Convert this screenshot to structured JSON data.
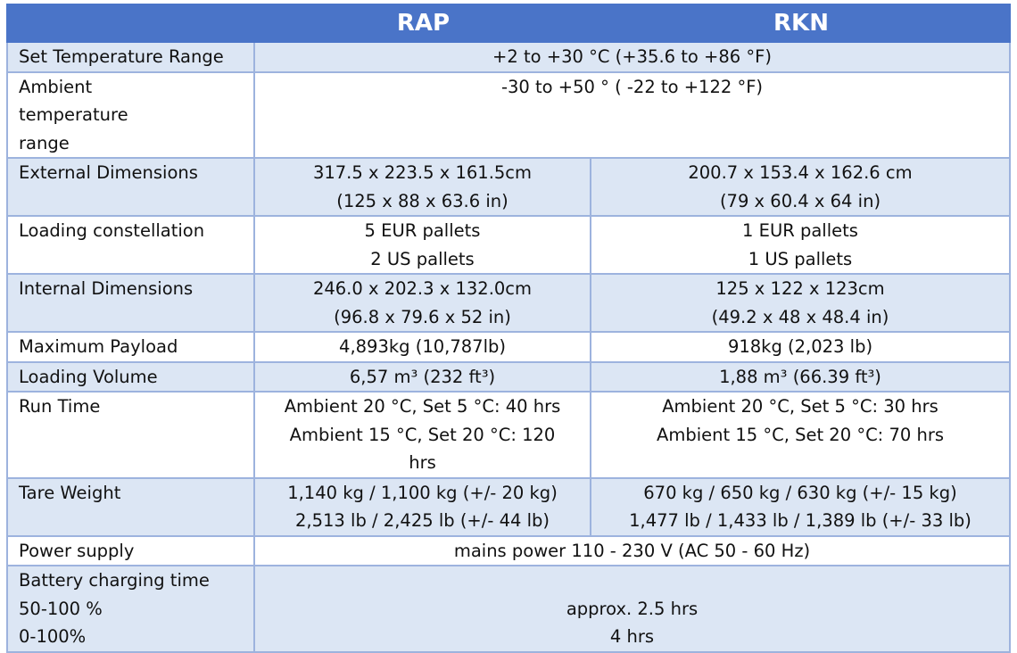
{
  "header": {
    "col1": "",
    "col2": "RAP",
    "col3": "RKN"
  },
  "rows": {
    "set_temp": {
      "label": "Set Temperature Range",
      "value": "+2 to +30 °C (+35.6 to +86 °F)"
    },
    "ambient": {
      "label_line1_a": "Ambient",
      "label_line1_b": "temperature",
      "label_line2": "range",
      "value": "-30 to +50 ° ( -22 to +122 °F)"
    },
    "external": {
      "label": "External Dimensions",
      "rap": [
        "317.5 x 223.5 x 161.5cm",
        "(125 x 88 x 63.6 in)"
      ],
      "rkn": [
        "200.7 x 153.4 x 162.6 cm",
        "(79 x 60.4 x 64 in)"
      ]
    },
    "loading_constellation": {
      "label": "Loading constellation",
      "rap": [
        "5 EUR pallets",
        "2 US pallets"
      ],
      "rkn": [
        "1 EUR pallets",
        "1 US pallets"
      ]
    },
    "internal": {
      "label": "Internal Dimensions",
      "rap": [
        "246.0 x 202.3 x 132.0cm",
        "(96.8 x 79.6 x 52 in)"
      ],
      "rkn": [
        "125 x 122 x 123cm",
        "(49.2 x 48 x 48.4 in)"
      ]
    },
    "payload": {
      "label": "Maximum Payload",
      "rap": "4,893kg (10,787lb)",
      "rkn": "918kg (2,023 lb)"
    },
    "volume": {
      "label": "Loading Volume",
      "rap": "6,57 m³ (232 ft³)",
      "rkn": "1,88 m³ (66.39 ft³)"
    },
    "run_time": {
      "label": "Run Time",
      "rap": [
        "Ambient 20 °C, Set 5 °C: 40 hrs",
        "Ambient 15 °C, Set 20 °C: 120",
        "hrs"
      ],
      "rkn": [
        "Ambient 20 °C, Set 5 °C: 30 hrs",
        "Ambient 15 °C, Set 20 °C: 70 hrs"
      ]
    },
    "tare": {
      "label": "Tare Weight",
      "rap": [
        "1,140 kg / 1,100 kg (+/- 20 kg)",
        "2,513 lb / 2,425 lb (+/- 44 lb)"
      ],
      "rkn": [
        "670 kg / 650 kg / 630 kg (+/- 15 kg)",
        "1,477 lb / 1,433 lb / 1,389 lb (+/- 33 lb)"
      ]
    },
    "power": {
      "label": "Power supply",
      "value": "mains power 110 - 230 V (AC 50 - 60 Hz)"
    },
    "battery": {
      "label": [
        "Battery charging time",
        "50-100 %",
        "0-100%"
      ],
      "value": [
        "",
        "approx. 2.5 hrs",
        "4 hrs"
      ]
    }
  }
}
